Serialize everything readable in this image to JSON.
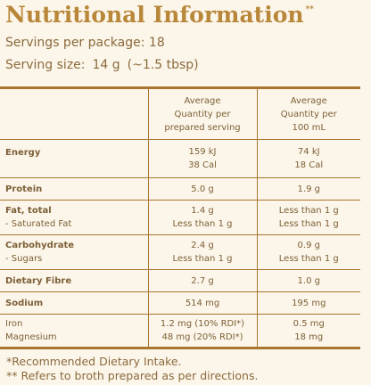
{
  "header": {
    "title": "Nutritional Information",
    "title_mark": "**",
    "servings_label": "Servings per package: 18",
    "serving_size_label": "Serving size:",
    "serving_size_value": "14 g",
    "serving_size_alt": "(~1.5 tbsp)"
  },
  "table": {
    "headers": [
      "",
      [
        "Average",
        "Quantity per",
        "prepared serving"
      ],
      [
        "Average",
        "Quantity per",
        "100 mL"
      ]
    ],
    "rows": {
      "energy": {
        "label": "Energy",
        "serving": [
          "159 kJ",
          "38 Cal"
        ],
        "per100": [
          "74 kJ",
          "18 Cal"
        ]
      },
      "protein": {
        "label": "Protein",
        "serving": "5.0 g",
        "per100": "1.9 g"
      },
      "fat": {
        "label": "Fat, total",
        "sub_label": "- Saturated Fat",
        "serving": [
          "1.4 g",
          "Less than 1 g"
        ],
        "per100": [
          "Less than 1 g",
          "Less than 1 g"
        ]
      },
      "carb": {
        "label": "Carbohydrate",
        "sub_label": "-  Sugars",
        "serving": [
          "2.4 g",
          "Less than 1 g"
        ],
        "per100": [
          "0.9 g",
          "Less than 1 g"
        ]
      },
      "fibre": {
        "label": "Dietary Fibre",
        "serving": "2.7 g",
        "per100": "1.0 g"
      },
      "sodium": {
        "label": "Sodium",
        "serving": "514 mg",
        "per100": "195 mg"
      },
      "minerals": {
        "labels": [
          "Iron",
          "Magnesium"
        ],
        "serving": [
          "1.2 mg (10% RDI*)",
          "48 mg (20% RDI*)"
        ],
        "per100": [
          "0.5 mg",
          "18 mg"
        ]
      }
    }
  },
  "footnotes": [
    "*Recommended Dietary Intake.",
    "** Refers to broth prepared as per directions."
  ],
  "colors": {
    "title": "#b8873a",
    "text": "#8a6a3c",
    "rule": "#a97530",
    "background": "#fcf6ea"
  }
}
